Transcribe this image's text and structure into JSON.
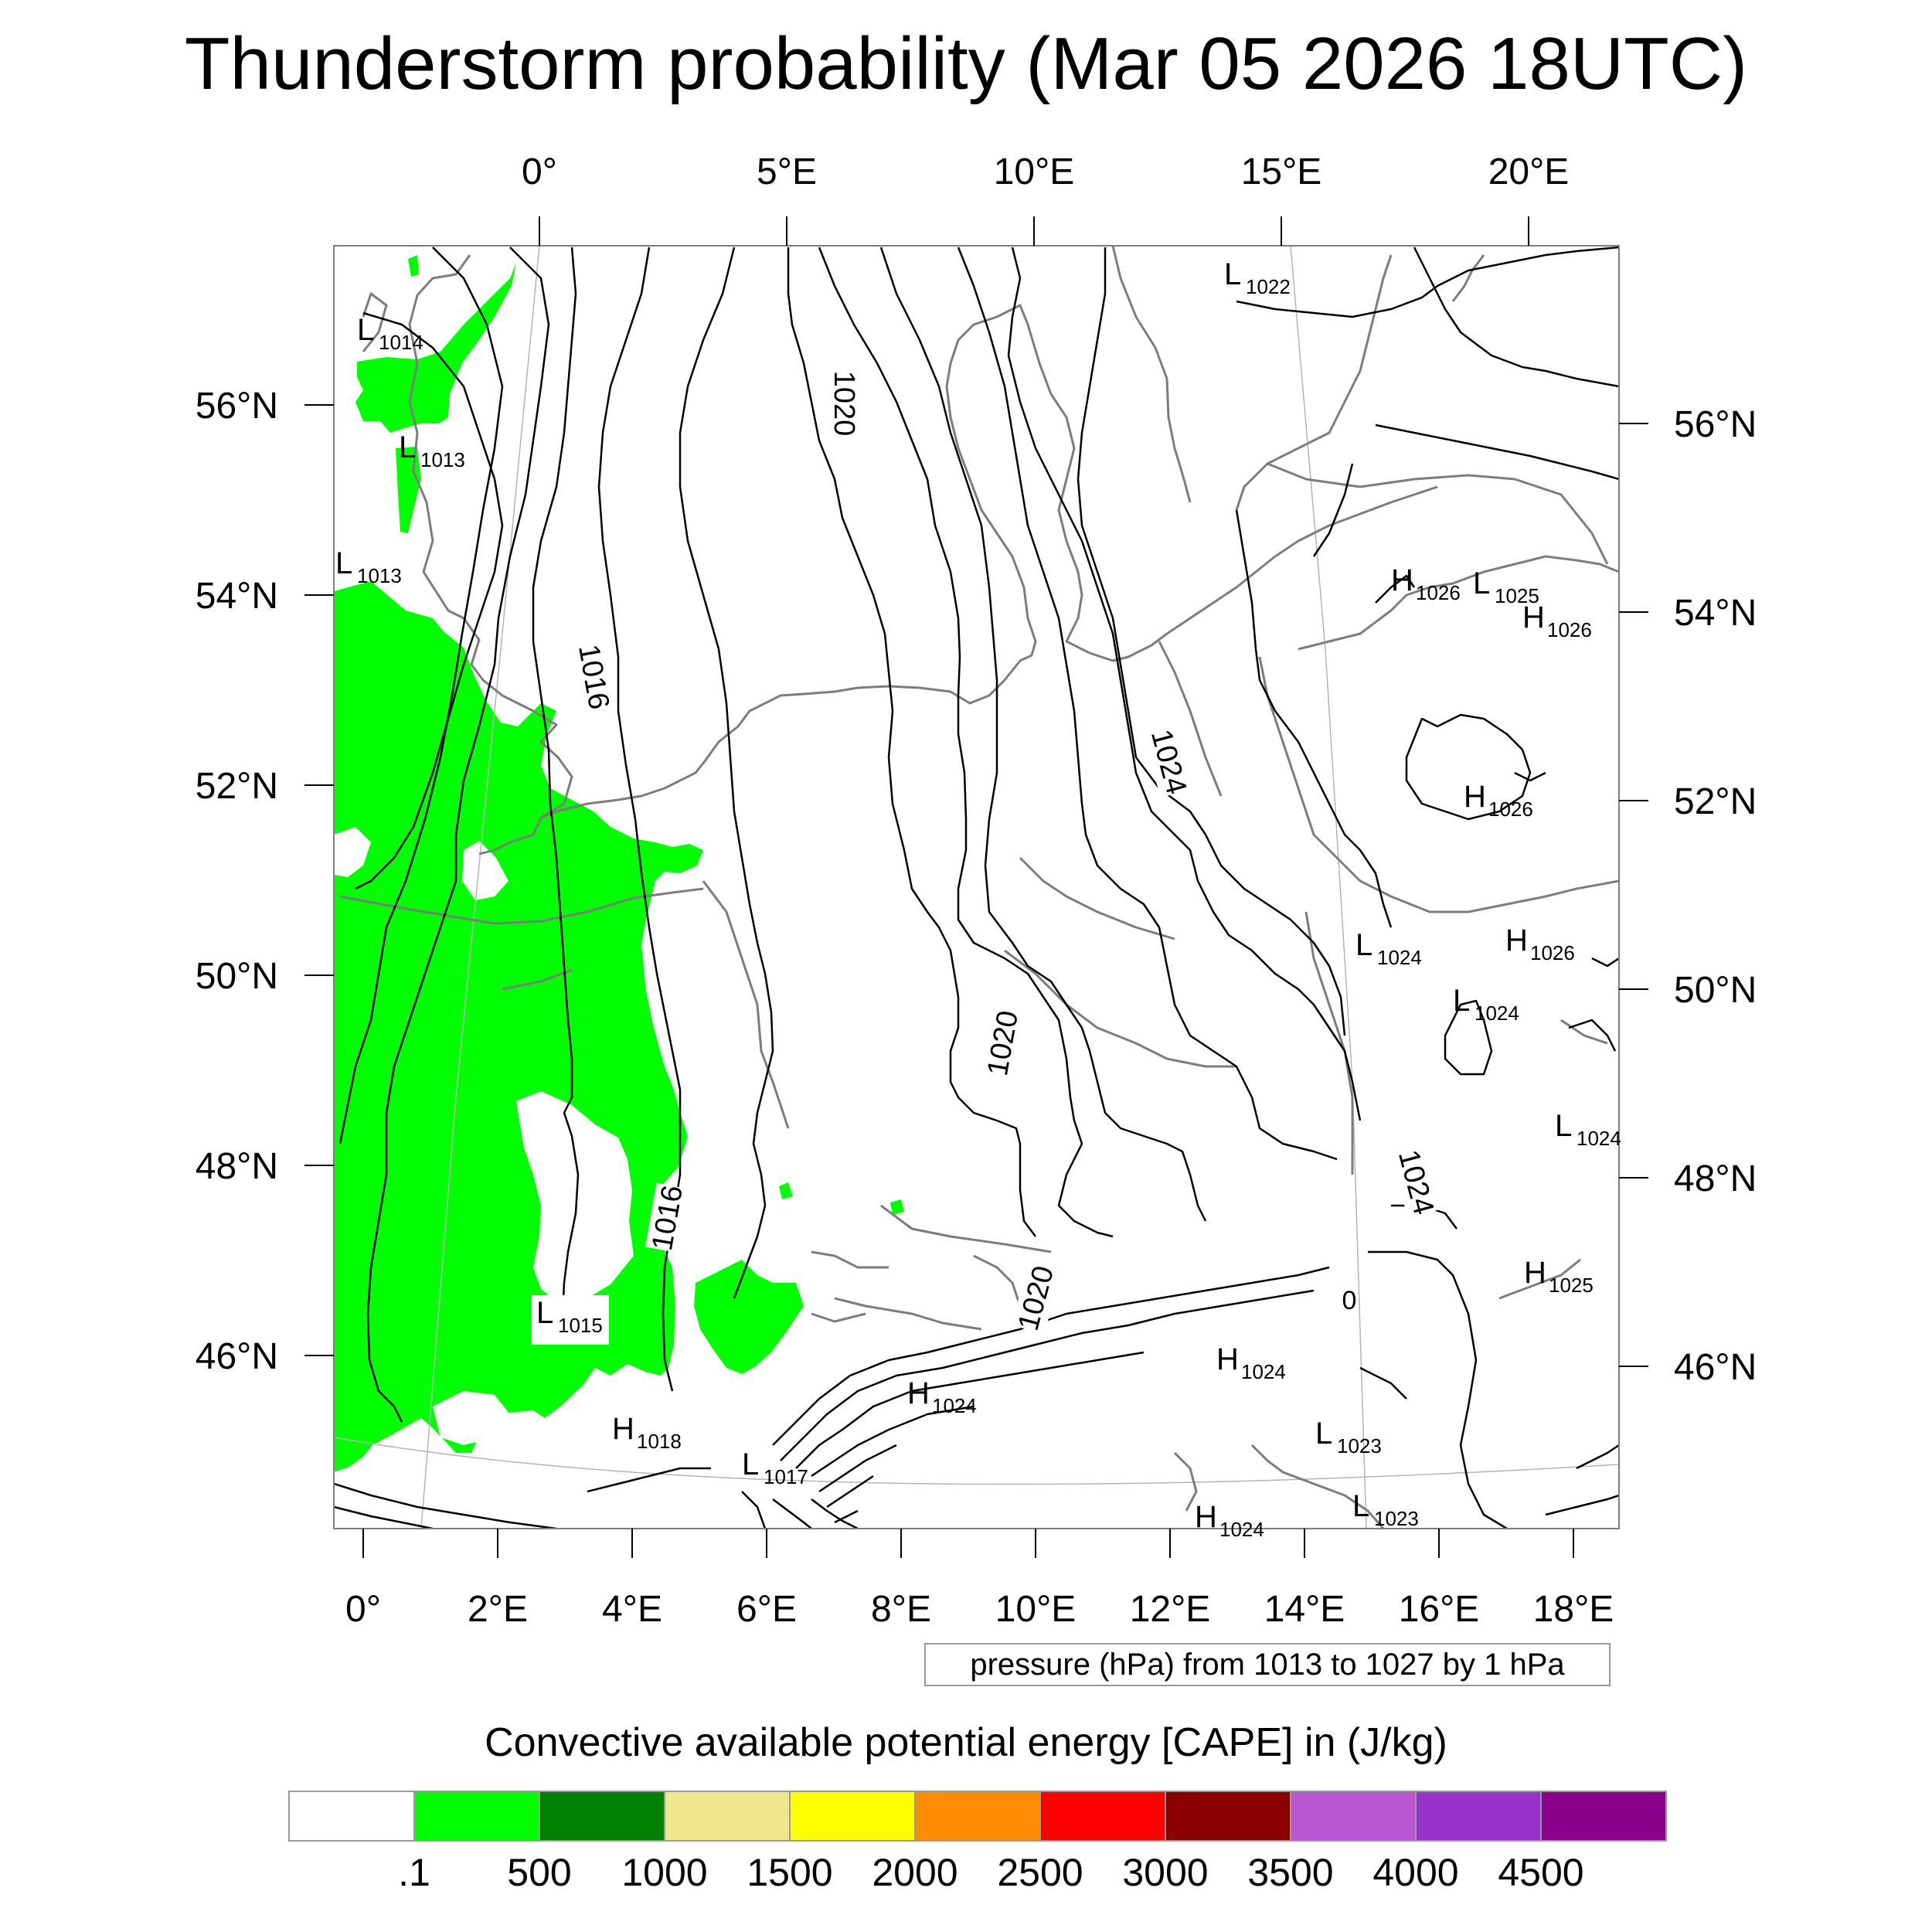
{
  "title": "Thunderstorm probability (Mar 05 2026 18UTC)",
  "map": {
    "top_lon_labels": [
      "0°",
      "5°E",
      "10°E",
      "15°E",
      "20°E"
    ],
    "bottom_lon_labels": [
      "0°",
      "2°E",
      "4°E",
      "6°E",
      "8°E",
      "10°E",
      "12°E",
      "14°E",
      "16°E",
      "18°E"
    ],
    "left_lat_labels": [
      "56°N",
      "54°N",
      "52°N",
      "50°N",
      "48°N",
      "46°N"
    ],
    "right_lat_labels": [
      "56°N",
      "54°N",
      "52°N",
      "50°N",
      "48°N",
      "46°N"
    ],
    "contour_labels": [
      "1020",
      "1016",
      "1024",
      "1016",
      "1020",
      "1020",
      "1024",
      "0"
    ],
    "pressure_centers": [
      {
        "letter": "L",
        "value": "1014"
      },
      {
        "letter": "L",
        "value": "1013"
      },
      {
        "letter": "L",
        "value": "1013"
      },
      {
        "letter": "L",
        "value": "1022"
      },
      {
        "letter": "H",
        "value": "1026"
      },
      {
        "letter": "L",
        "value": "1025"
      },
      {
        "letter": "H",
        "value": "1026"
      },
      {
        "letter": "H",
        "value": "1026"
      },
      {
        "letter": "L",
        "value": "1024"
      },
      {
        "letter": "H",
        "value": "1026"
      },
      {
        "letter": "L",
        "value": "1024"
      },
      {
        "letter": "L",
        "value": "1024"
      },
      {
        "letter": "H",
        "value": "1025"
      },
      {
        "letter": "L",
        "value": "1015"
      },
      {
        "letter": "H",
        "value": "1024"
      },
      {
        "letter": "H",
        "value": "1018"
      },
      {
        "letter": "H",
        "value": "1024"
      },
      {
        "letter": "L",
        "value": "1017"
      },
      {
        "letter": "L",
        "value": "1023"
      },
      {
        "letter": "L",
        "value": "1023"
      },
      {
        "letter": "H",
        "value": "1024"
      }
    ],
    "pressure_note": "pressure (hPa) from 1013 to 1027 by 1 hPa"
  },
  "colorbar": {
    "title": "Convective available potential energy [CAPE] in (J/kg)",
    "colors": [
      "#ffffff",
      "#00ff00",
      "#008000",
      "#f0e68c",
      "#ffff00",
      "#ff8c00",
      "#ff0000",
      "#8b0000",
      "#ba55d3",
      "#9932cc",
      "#8b008b"
    ],
    "labels": [
      ".1",
      "500",
      "1000",
      "1500",
      "2000",
      "2500",
      "3000",
      "3500",
      "4000",
      "4500"
    ]
  }
}
